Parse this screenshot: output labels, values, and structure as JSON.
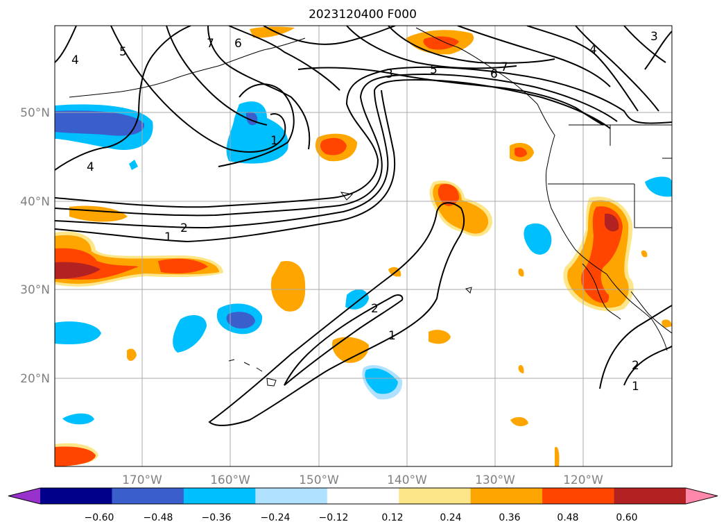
{
  "title": "2023120400 F000",
  "lat_labels": [
    "50°N",
    "40°N",
    "30°N",
    "20°N"
  ],
  "lon_labels": [
    "170°W",
    "160°W",
    "150°W",
    "140°W",
    "130°W",
    "120°W"
  ],
  "colorbar": {
    "colors": [
      "#9932cc",
      "#00008b",
      "#3a5fcd",
      "#00bfff",
      "#b0e2ff",
      "#ffffff",
      "#fde68a",
      "#ffa500",
      "#ff4500",
      "#b22222",
      "#ff88aa"
    ],
    "labels": [
      "−0.60",
      "−0.48",
      "−0.36",
      "−0.24",
      "−0.12",
      "0.12",
      "0.24",
      "0.36",
      "0.48",
      "0.60"
    ]
  },
  "contour_labels": [
    "4",
    "5",
    "7",
    "6",
    "3",
    "5",
    "7",
    "6",
    "4",
    "3",
    "1",
    "4",
    "2",
    "1",
    "2",
    "1",
    "2",
    "1"
  ]
}
